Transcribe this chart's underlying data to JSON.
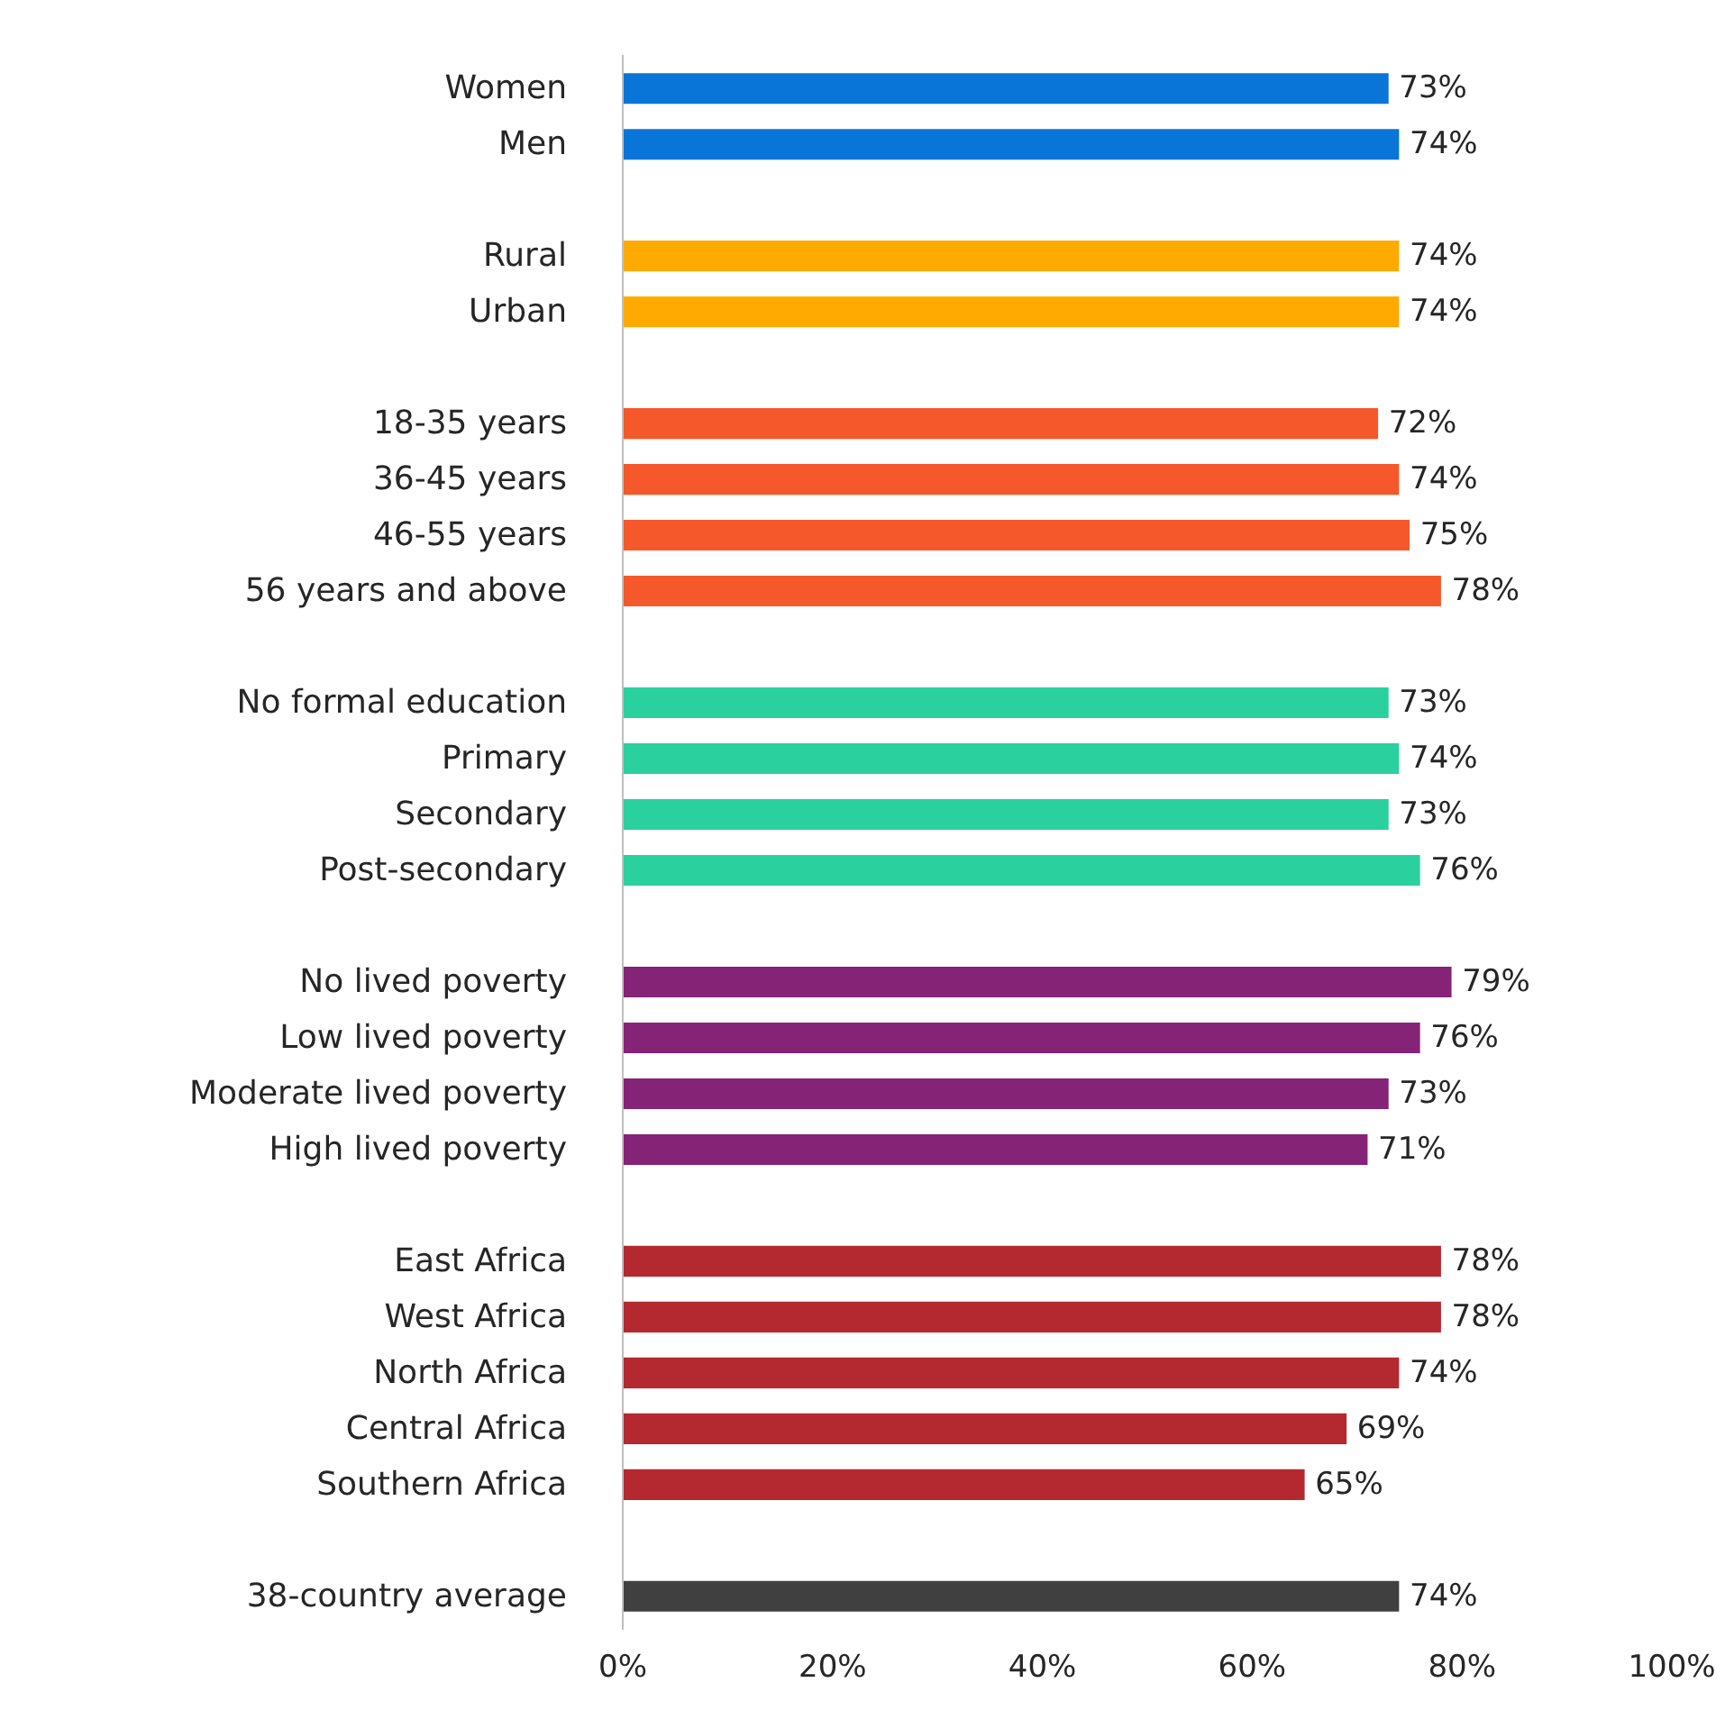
{
  "chart_data": {
    "type": "bar",
    "orientation": "horizontal",
    "categories": [
      "Women",
      "Men",
      null,
      "Rural",
      "Urban",
      null,
      "18-35 years",
      "36-45 years",
      "46-55 years",
      "56 years and above",
      null,
      "No formal education",
      "Primary",
      "Secondary",
      "Post-secondary",
      null,
      "No lived poverty",
      "Low lived poverty",
      "Moderate lived poverty",
      "High lived poverty",
      null,
      "East Africa",
      "West Africa",
      "North Africa",
      "Central Africa",
      "Southern Africa",
      null,
      "38-country average"
    ],
    "values": [
      73,
      74,
      null,
      74,
      74,
      null,
      72,
      74,
      75,
      78,
      null,
      73,
      74,
      73,
      76,
      null,
      79,
      76,
      73,
      71,
      null,
      78,
      78,
      74,
      69,
      65,
      null,
      74
    ],
    "value_labels": [
      "73%",
      "74%",
      null,
      "74%",
      "74%",
      null,
      "72%",
      "74%",
      "75%",
      "78%",
      null,
      "73%",
      "74%",
      "73%",
      "76%",
      null,
      "79%",
      "76%",
      "73%",
      "71%",
      null,
      "78%",
      "78%",
      "74%",
      "69%",
      "65%",
      null,
      "74%"
    ],
    "colors": [
      "#0a75d8",
      "#0a75d8",
      null,
      "#ffaa00",
      "#ffaa00",
      null,
      "#f4582b",
      "#f4582b",
      "#f4582b",
      "#f4582b",
      null,
      "#2ad19f",
      "#2ad19f",
      "#2ad19f",
      "#2ad19f",
      null,
      "#852376",
      "#852376",
      "#852376",
      "#852376",
      null,
      "#b4292f",
      "#b4292f",
      "#b4292f",
      "#b4292f",
      "#b4292f",
      null,
      "#404040"
    ],
    "xlim": [
      0,
      100
    ],
    "xticks": [
      {
        "value": 0,
        "label": "0%"
      },
      {
        "value": 20,
        "label": "20%"
      },
      {
        "value": 40,
        "label": "40%"
      },
      {
        "value": 60,
        "label": "60%"
      },
      {
        "value": 80,
        "label": "80%"
      },
      {
        "value": 100,
        "label": "100%"
      }
    ],
    "grid": false
  }
}
